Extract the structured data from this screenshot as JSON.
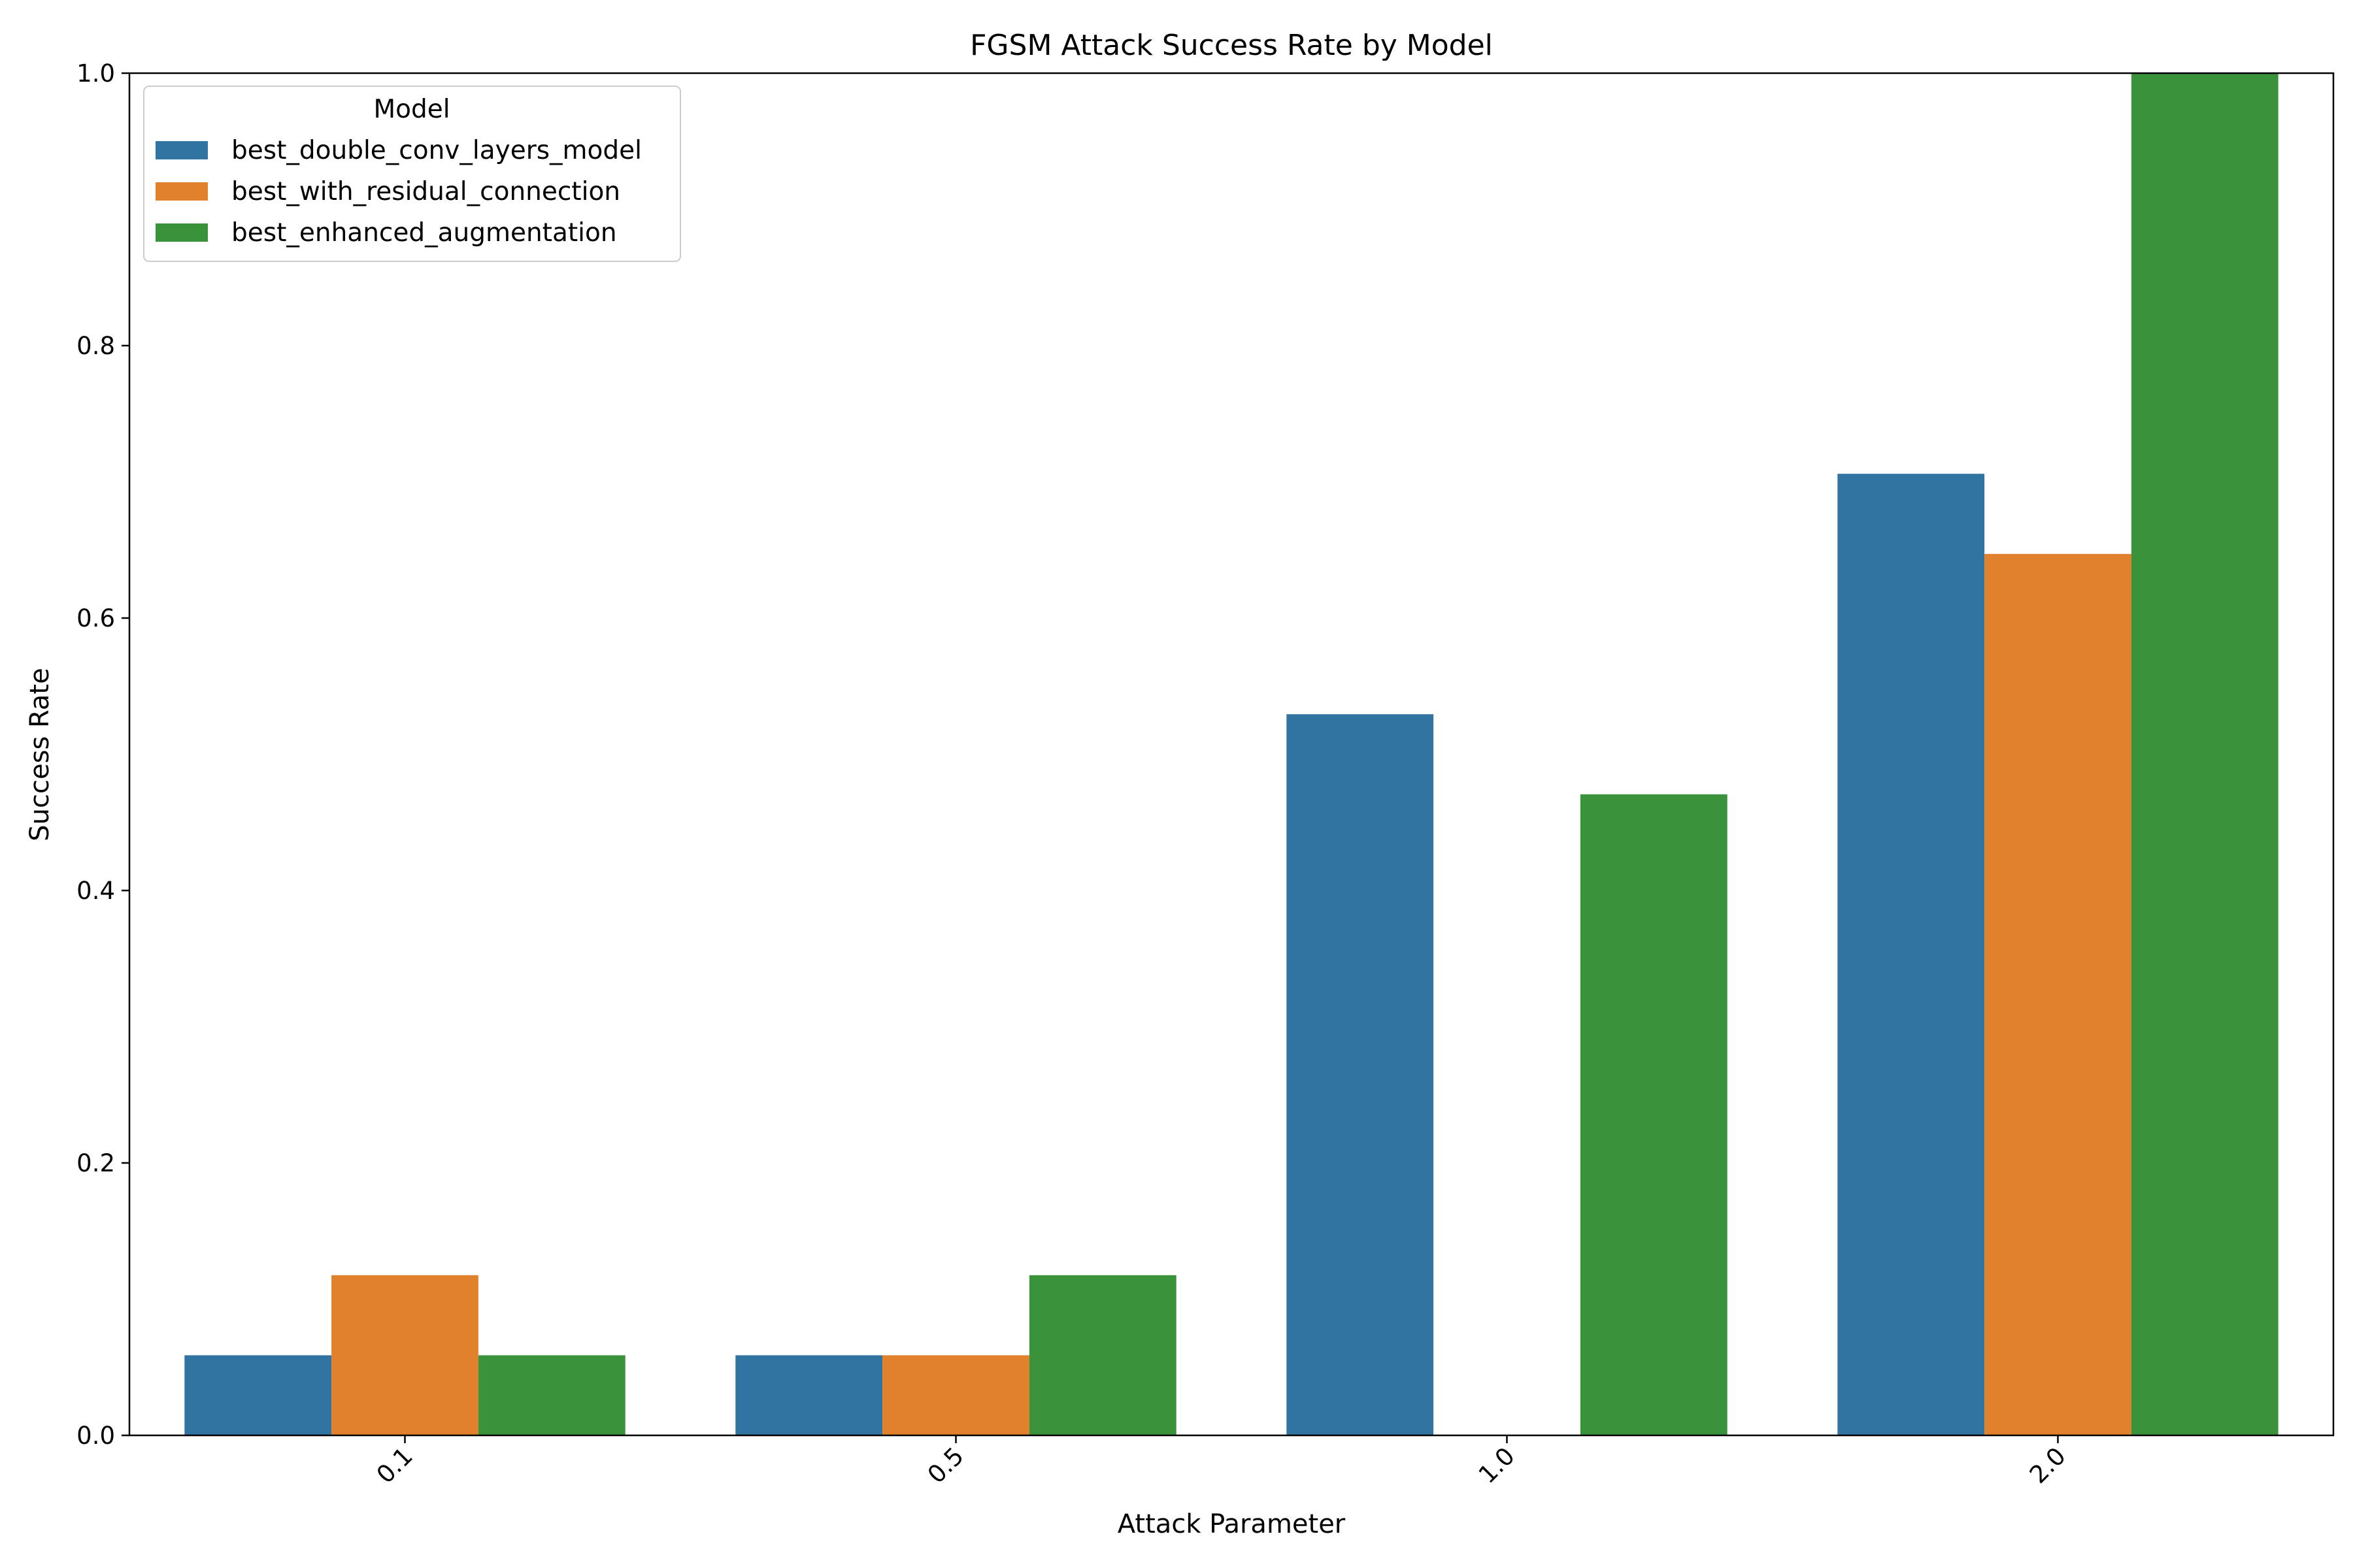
{
  "chart_data": {
    "type": "bar",
    "title": "FGSM Attack Success Rate by Model",
    "xlabel": "Attack Parameter",
    "ylabel": "Success Rate",
    "categories": [
      "0.1",
      "0.5",
      "1.0",
      "2.0"
    ],
    "ylim": [
      0,
      1.0
    ],
    "yticks": [
      "0.0",
      "0.2",
      "0.4",
      "0.6",
      "0.8",
      "1.0"
    ],
    "grid": false,
    "legend": {
      "title": "Model",
      "placement": "top-left"
    },
    "series": [
      {
        "name": "best_double_conv_layers_model",
        "color": "#3274a1",
        "values": [
          0.0588,
          0.0588,
          0.5294,
          0.7059
        ]
      },
      {
        "name": "best_with_residual_connection",
        "color": "#e1812c",
        "values": [
          0.1176,
          0.0588,
          0.0,
          0.6471
        ]
      },
      {
        "name": "best_enhanced_augmentation",
        "color": "#3a923a",
        "values": [
          0.0588,
          0.1176,
          0.4706,
          1.0
        ]
      }
    ]
  }
}
